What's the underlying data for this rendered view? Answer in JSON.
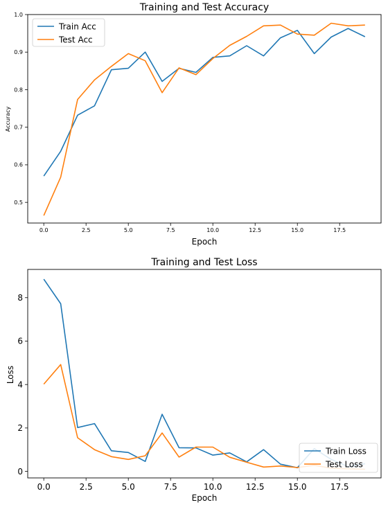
{
  "chart_data": [
    {
      "type": "line",
      "title": "Training and Test Accuracy",
      "xlabel": "Epoch",
      "ylabel": "Accuracy",
      "xlim": [
        -0.95,
        19.95
      ],
      "ylim": [
        0.445,
        1.0
      ],
      "xticks": [
        0.0,
        2.5,
        5.0,
        7.5,
        10.0,
        12.5,
        15.0,
        17.5
      ],
      "xtick_labels": [
        "0.0",
        "2.5",
        "5.0",
        "7.5",
        "10.0",
        "12.5",
        "15.0",
        "17.5"
      ],
      "yticks": [
        0.5,
        0.6,
        0.7,
        0.8,
        0.9,
        1.0
      ],
      "ytick_labels": [
        "0.5",
        "0.6",
        "0.7",
        "0.8",
        "0.9",
        "1.0"
      ],
      "grid": false,
      "legend": "upper left",
      "x": [
        0,
        1,
        2,
        3,
        4,
        5,
        6,
        7,
        8,
        9,
        10,
        11,
        12,
        13,
        14,
        15,
        16,
        17,
        18,
        19
      ],
      "series": [
        {
          "name": "Train Acc",
          "color": "#1f77b4",
          "values": [
            0.57,
            0.636,
            0.732,
            0.757,
            0.853,
            0.857,
            0.9,
            0.822,
            0.857,
            0.846,
            0.886,
            0.89,
            0.917,
            0.89,
            0.938,
            0.958,
            0.896,
            0.94,
            0.963,
            0.941
          ]
        },
        {
          "name": "Test Acc",
          "color": "#ff7f0e",
          "values": [
            0.465,
            0.567,
            0.774,
            0.826,
            0.862,
            0.896,
            0.877,
            0.792,
            0.858,
            0.84,
            0.883,
            0.918,
            0.942,
            0.97,
            0.972,
            0.948,
            0.945,
            0.977,
            0.97,
            0.972
          ]
        }
      ]
    },
    {
      "type": "line",
      "title": "Training and Test Loss",
      "xlabel": "Epoch",
      "ylabel": "Loss",
      "xlim": [
        -0.95,
        19.95
      ],
      "ylim": [
        -0.3,
        9.3
      ],
      "xticks": [
        0.0,
        2.5,
        5.0,
        7.5,
        10.0,
        12.5,
        15.0,
        17.5
      ],
      "xtick_labels": [
        "0.0",
        "2.5",
        "5.0",
        "7.5",
        "10.0",
        "12.5",
        "15.0",
        "17.5"
      ],
      "yticks": [
        0,
        2,
        4,
        6,
        8
      ],
      "ytick_labels": [
        "0",
        "2",
        "4",
        "6",
        "8"
      ],
      "grid": false,
      "legend": "lower right",
      "x": [
        0,
        1,
        2,
        3,
        4,
        5,
        6,
        7,
        8,
        9,
        10,
        11,
        12,
        13,
        14,
        15,
        16,
        17,
        18,
        19
      ],
      "series": [
        {
          "name": "Train Loss",
          "color": "#1f77b4",
          "values": [
            8.85,
            7.72,
            2.02,
            2.2,
            0.95,
            0.87,
            0.46,
            2.63,
            1.09,
            1.08,
            0.75,
            0.85,
            0.44,
            1.0,
            0.33,
            0.17,
            1.05,
            0.55,
            0.22,
            0.35
          ]
        },
        {
          "name": "Test Loss",
          "color": "#ff7f0e",
          "values": [
            4.02,
            4.92,
            1.55,
            1.0,
            0.68,
            0.55,
            0.72,
            1.77,
            0.66,
            1.12,
            1.12,
            0.65,
            0.42,
            0.2,
            0.25,
            0.18,
            0.28,
            0.15,
            0.12,
            0.1
          ]
        }
      ]
    }
  ]
}
